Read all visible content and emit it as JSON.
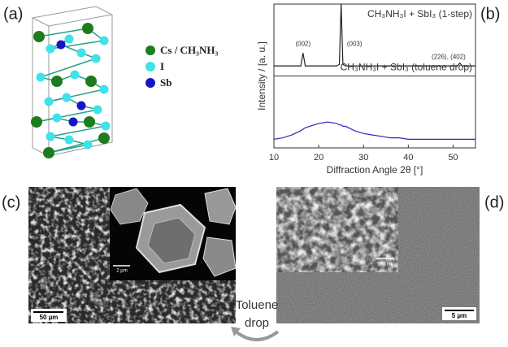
{
  "panel_labels": [
    "(a)",
    "(b)",
    "(c)",
    "(d)"
  ],
  "structure_legend": [
    {
      "label": "Cs / CH₃NH₃",
      "color": "#1e7b1e"
    },
    {
      "label": "I",
      "color": "#3fe2e8"
    },
    {
      "label": "Sb",
      "color": "#1616c8"
    }
  ],
  "chart_data": {
    "type": "line",
    "x_label": "Diffraction Angle 2θ [°]",
    "y_label": "Intensity / [a. u.]",
    "x": [
      10,
      12,
      14,
      16,
      16.5,
      17,
      18,
      20,
      22,
      24,
      24.6,
      25,
      25.4,
      26,
      28,
      30,
      32,
      34,
      36,
      38,
      40,
      42,
      44,
      46,
      48,
      50,
      51,
      51.5,
      52,
      54,
      55
    ],
    "series": [
      {
        "name": "CH₃NH₃I + SbI₃ (1-step)",
        "color": "#222222",
        "values": [
          57,
          57,
          57,
          57,
          66,
          57,
          57,
          57,
          57,
          57,
          58,
          100,
          58,
          57,
          57,
          57,
          57,
          57,
          57,
          57,
          57,
          57,
          57,
          57,
          57,
          57,
          57,
          59,
          57,
          57,
          57
        ]
      },
      {
        "name": "CH₃NH₃I + SbI₃ (toluene drop)",
        "color": "#2b2bb8",
        "values": [
          6,
          7,
          9,
          12,
          13,
          14,
          15,
          17,
          18,
          17,
          16,
          16,
          15,
          15,
          12,
          10,
          9,
          8,
          7,
          7,
          6,
          6,
          6,
          6,
          6,
          6,
          6,
          6,
          6,
          6,
          6
        ]
      }
    ],
    "annotations": [
      "(002)",
      "(003)",
      "(226), (402)"
    ],
    "xlim": [
      10,
      55
    ],
    "xticks": [
      10,
      20,
      30,
      40,
      50
    ],
    "ylim": [
      0,
      100
    ]
  },
  "scale_bars": [
    "50 µm",
    "2 µm",
    "500 nm",
    "5 µm"
  ],
  "transition_label": [
    "Toluene",
    "drop"
  ]
}
